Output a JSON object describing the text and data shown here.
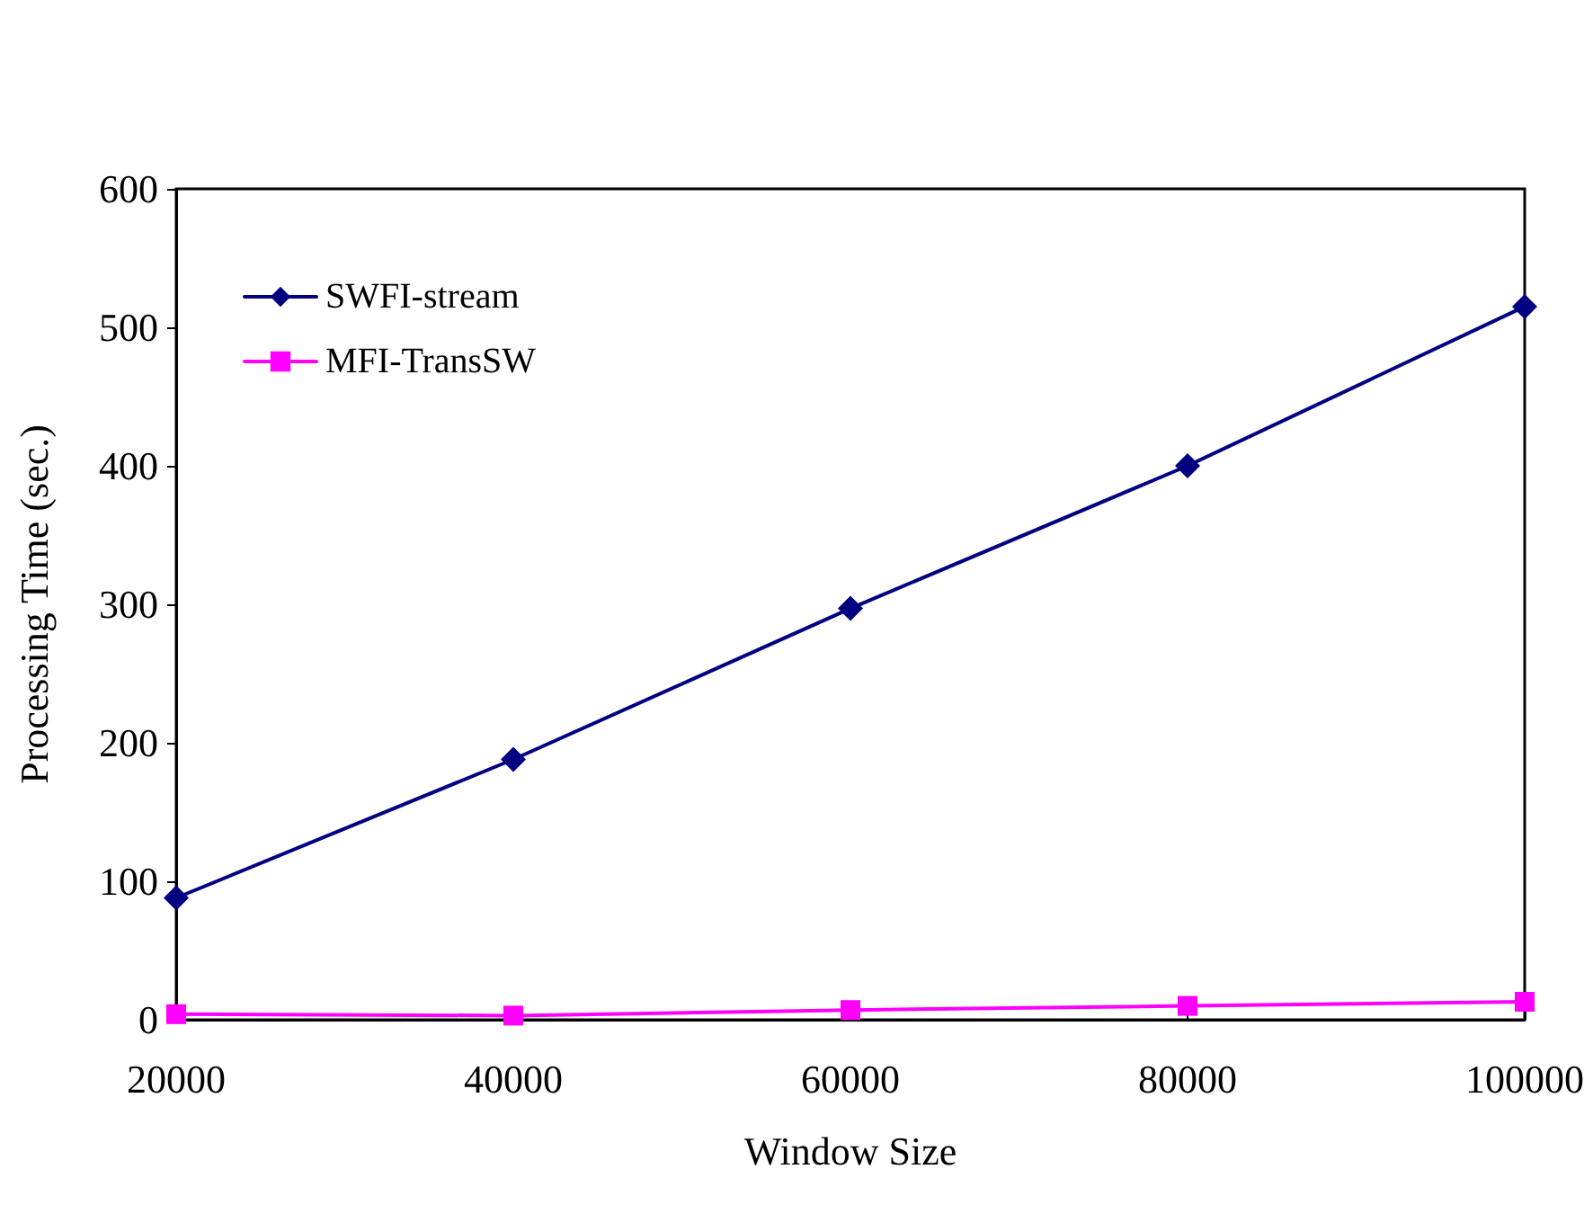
{
  "chart_data": {
    "type": "line",
    "xlabel": "Window Size",
    "ylabel": "Processing Time (sec.)",
    "x": [
      20000,
      40000,
      60000,
      80000,
      100000
    ],
    "series": [
      {
        "name": "SWFI-stream",
        "color": "#000080",
        "marker": "diamond",
        "values": [
          88,
          188,
          297,
          400,
          515
        ]
      },
      {
        "name": "MFI-TransSW",
        "color": "#ff00ff",
        "marker": "square",
        "values": [
          4,
          3,
          7,
          10,
          13
        ]
      }
    ],
    "xlim": [
      20000,
      100000
    ],
    "xticks": [
      20000,
      40000,
      60000,
      80000,
      100000
    ],
    "ylim": [
      0,
      600
    ],
    "yticks": [
      0,
      100,
      200,
      300,
      400,
      500,
      600
    ],
    "grid": false,
    "legend": "top left"
  }
}
